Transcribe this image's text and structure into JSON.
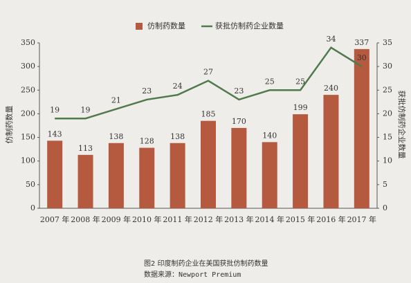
{
  "chart_data": {
    "type": "bar",
    "categories": [
      "2007 年",
      "2008 年",
      "2009 年",
      "2010 年",
      "2011 年",
      "2012 年",
      "2013 年",
      "2014 年",
      "2015 年",
      "2016 年",
      "2017 年"
    ],
    "series": [
      {
        "name": "仿制药数量",
        "type": "bar",
        "color": "#b65a3f",
        "values": [
          143,
          113,
          138,
          128,
          138,
          185,
          170,
          140,
          199,
          240,
          337
        ]
      },
      {
        "name": "获批仿制药企业数量",
        "type": "line",
        "axis": "y2",
        "color": "#4e7a4c",
        "values": [
          19,
          19,
          21,
          23,
          24,
          27,
          23,
          25,
          25,
          34,
          30
        ]
      }
    ],
    "y_label": "仿制药数量",
    "y2_label": "获批仿制药企业数量",
    "ylim": [
      0,
      350
    ],
    "yticks": [
      0,
      50,
      100,
      150,
      200,
      250,
      300,
      350
    ],
    "y2lim": [
      0,
      35
    ],
    "y2ticks": [
      0,
      5,
      10,
      15,
      20,
      25,
      30,
      35
    ],
    "grid": false,
    "caption": "图2  印度制药企业在美国获批仿制药数量",
    "source": "数据来源：Newport Premium"
  }
}
